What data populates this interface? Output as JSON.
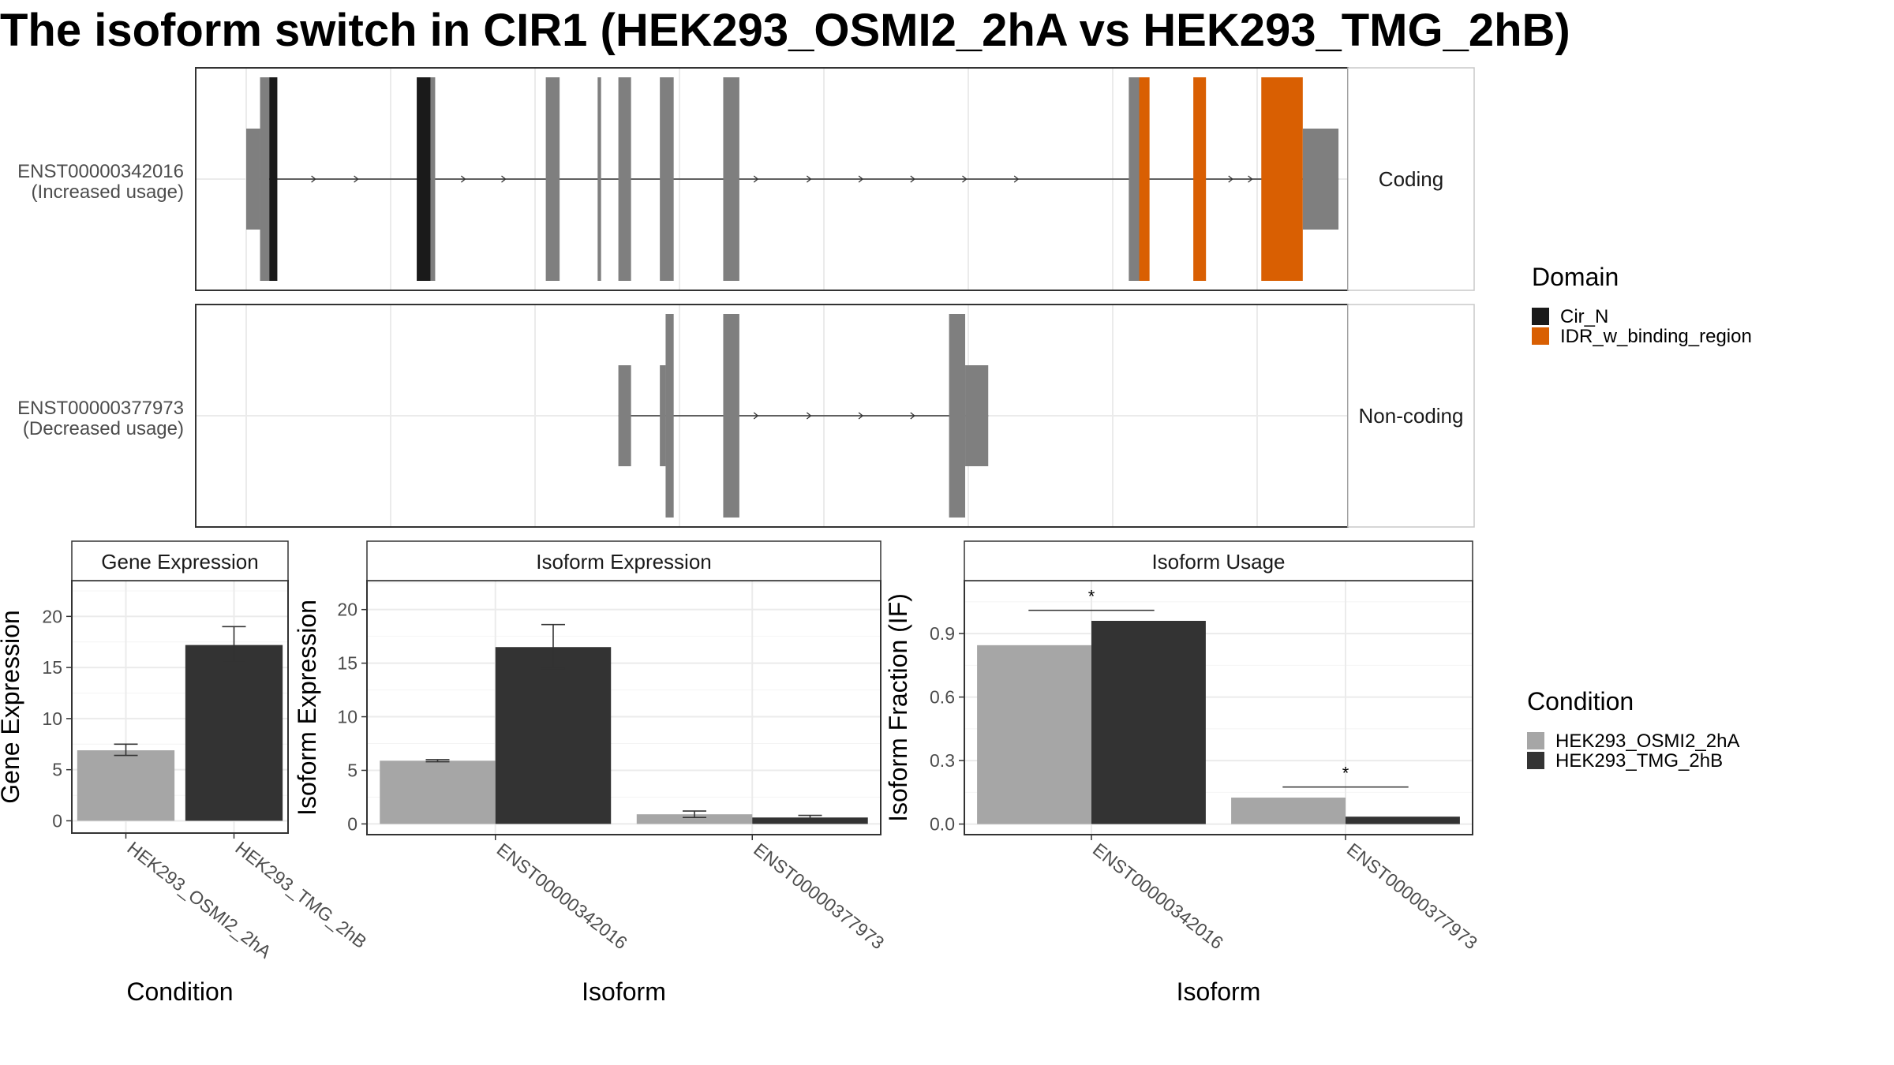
{
  "title": "The isoform switch in CIR1 (HEK293_OSMI2_2hA vs HEK293_TMG_2hB)",
  "colors": {
    "grid": "#ebebeb",
    "exon": "#7f7f7f",
    "cond1": "#a6a6a6",
    "cond2": "#333333"
  },
  "structure": {
    "transcripts": [
      {
        "id": "ENST00000342016",
        "usage": "(Increased usage)",
        "strip": "Coding",
        "exons": [
          {
            "start": 0.0,
            "end": 0.012,
            "h": "half",
            "domain": null
          },
          {
            "start": 0.012,
            "end": 0.02,
            "h": "full",
            "domain": null
          },
          {
            "start": 0.02,
            "end": 0.027,
            "h": "full",
            "domain": "Cir_N"
          },
          {
            "start": 0.148,
            "end": 0.16,
            "h": "full",
            "domain": "Cir_N"
          },
          {
            "start": 0.16,
            "end": 0.164,
            "h": "full",
            "domain": null
          },
          {
            "start": 0.26,
            "end": 0.272,
            "h": "full",
            "domain": null
          },
          {
            "start": 0.305,
            "end": 0.308,
            "h": "full",
            "domain": null
          },
          {
            "start": 0.323,
            "end": 0.334,
            "h": "full",
            "domain": null
          },
          {
            "start": 0.359,
            "end": 0.371,
            "h": "full",
            "domain": null
          },
          {
            "start": 0.414,
            "end": 0.428,
            "h": "full",
            "domain": null
          },
          {
            "start": 0.766,
            "end": 0.775,
            "h": "full",
            "domain": null
          },
          {
            "start": 0.775,
            "end": 0.784,
            "h": "full",
            "domain": "IDR_w_binding_region"
          },
          {
            "start": 0.822,
            "end": 0.833,
            "h": "full",
            "domain": "IDR_w_binding_region"
          },
          {
            "start": 0.881,
            "end": 0.917,
            "h": "full",
            "domain": "IDR_w_binding_region"
          },
          {
            "start": 0.917,
            "end": 0.948,
            "h": "half",
            "domain": null
          }
        ],
        "arrows": [
          0.06,
          0.097,
          0.19,
          0.225,
          0.444,
          0.49,
          0.535,
          0.58,
          0.625,
          0.67,
          0.856,
          0.873
        ]
      },
      {
        "id": "ENST00000377973",
        "usage": "(Decreased usage)",
        "strip": "Non-coding",
        "exons": [
          {
            "start": 0.323,
            "end": 0.334,
            "h": "half",
            "domain": null
          },
          {
            "start": 0.359,
            "end": 0.364,
            "h": "half",
            "domain": null
          },
          {
            "start": 0.364,
            "end": 0.371,
            "h": "full",
            "domain": null
          },
          {
            "start": 0.414,
            "end": 0.428,
            "h": "full",
            "domain": null
          },
          {
            "start": 0.61,
            "end": 0.624,
            "h": "full",
            "domain": null
          },
          {
            "start": 0.624,
            "end": 0.644,
            "h": "half",
            "domain": null
          }
        ],
        "arrows": [
          0.444,
          0.49,
          0.535,
          0.58
        ]
      }
    ]
  },
  "domain_legend": {
    "title": "Domain",
    "items": [
      {
        "label": "Cir_N",
        "color": "#1a1a1a"
      },
      {
        "label": "IDR_w_binding_region",
        "color": "#d95f02"
      }
    ]
  },
  "condition_legend": {
    "title": "Condition",
    "items": [
      {
        "label": "HEK293_OSMI2_2hA",
        "color": "#a6a6a6"
      },
      {
        "label": "HEK293_TMG_2hB",
        "color": "#333333"
      }
    ]
  },
  "chart_data": [
    {
      "type": "bar",
      "title": "Gene Expression",
      "xlabel": "Condition",
      "ylabel": "Gene Expression",
      "categories": [
        "HEK293_OSMI2_2hA",
        "HEK293_TMG_2hB"
      ],
      "values": [
        6.9,
        17.2
      ],
      "errors": [
        [
          6.4,
          7.5
        ],
        [
          15.5,
          19.0
        ]
      ],
      "bar_colors": [
        "#a6a6a6",
        "#333333"
      ],
      "ylim": [
        -1.2,
        23.5
      ],
      "yticks": [
        0,
        5,
        10,
        15,
        20
      ]
    },
    {
      "type": "bar",
      "title": "Isoform Expression",
      "xlabel": "Isoform",
      "ylabel": "Isoform Expression",
      "categories": [
        "ENST00000342016",
        "ENST00000377973"
      ],
      "series": [
        {
          "name": "HEK293_OSMI2_2hA",
          "values": [
            5.9,
            0.9
          ],
          "errors": [
            [
              5.8,
              6.0
            ],
            [
              0.6,
              1.2
            ]
          ],
          "color": "#a6a6a6"
        },
        {
          "name": "HEK293_TMG_2hB",
          "values": [
            16.5,
            0.6
          ],
          "errors": [
            [
              14.5,
              18.6
            ],
            [
              0.4,
              0.8
            ]
          ],
          "color": "#333333"
        }
      ],
      "ylim": [
        -1.0,
        22.7
      ],
      "yticks": [
        0,
        5,
        10,
        15,
        20
      ]
    },
    {
      "type": "bar",
      "title": "Isoform Usage",
      "xlabel": "Isoform",
      "ylabel": "Isoform Fraction (IF)",
      "categories": [
        "ENST00000342016",
        "ENST00000377973"
      ],
      "series": [
        {
          "name": "HEK293_OSMI2_2hA",
          "values": [
            0.845,
            0.125
          ],
          "color": "#a6a6a6"
        },
        {
          "name": "HEK293_TMG_2hB",
          "values": [
            0.96,
            0.035
          ],
          "color": "#333333"
        }
      ],
      "significance": [
        {
          "category": "ENST00000342016",
          "label": "*",
          "y": 1.01
        },
        {
          "category": "ENST00000377973",
          "label": "*",
          "y": 0.175
        }
      ],
      "ylim": [
        -0.05,
        1.15
      ],
      "yticks": [
        0.0,
        0.3,
        0.6,
        0.9
      ],
      "ytick_labels": [
        "0.0",
        "0.3",
        "0.6",
        "0.9"
      ]
    }
  ]
}
